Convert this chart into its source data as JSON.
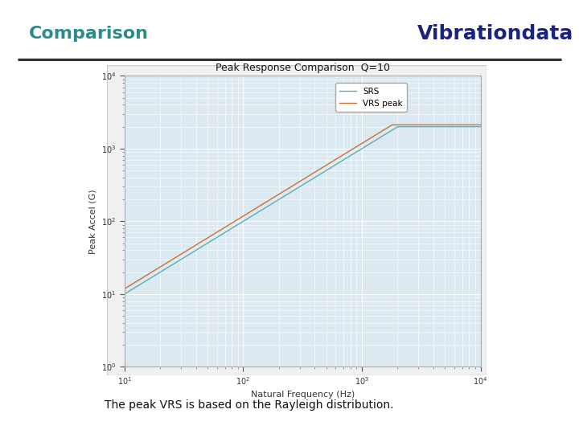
{
  "title": "Comparison",
  "title_color": "#2E8B8B",
  "brand": "Vibrationdata",
  "brand_color": "#1a237e",
  "chart_title": "Peak Response Comparison  Q=10",
  "xlabel": "Natural Frequency (Hz)",
  "ylabel": "Peak Accel (G)",
  "xmin": 10,
  "xmax": 10000,
  "ymin": 1.0,
  "ymax": 10000,
  "srs_color": "#5AACB8",
  "vrs_color": "#C87030",
  "legend_labels": [
    "SRS",
    "VRS peak"
  ],
  "footer_text": "The peak VRS is based on the Rayleigh distribution.",
  "hrule_color": "#333333",
  "background_color": "#ffffff",
  "plot_bg_color": "#dce9f0",
  "outer_box_color": "#e8e8e8",
  "grid_color": "#ffffff"
}
